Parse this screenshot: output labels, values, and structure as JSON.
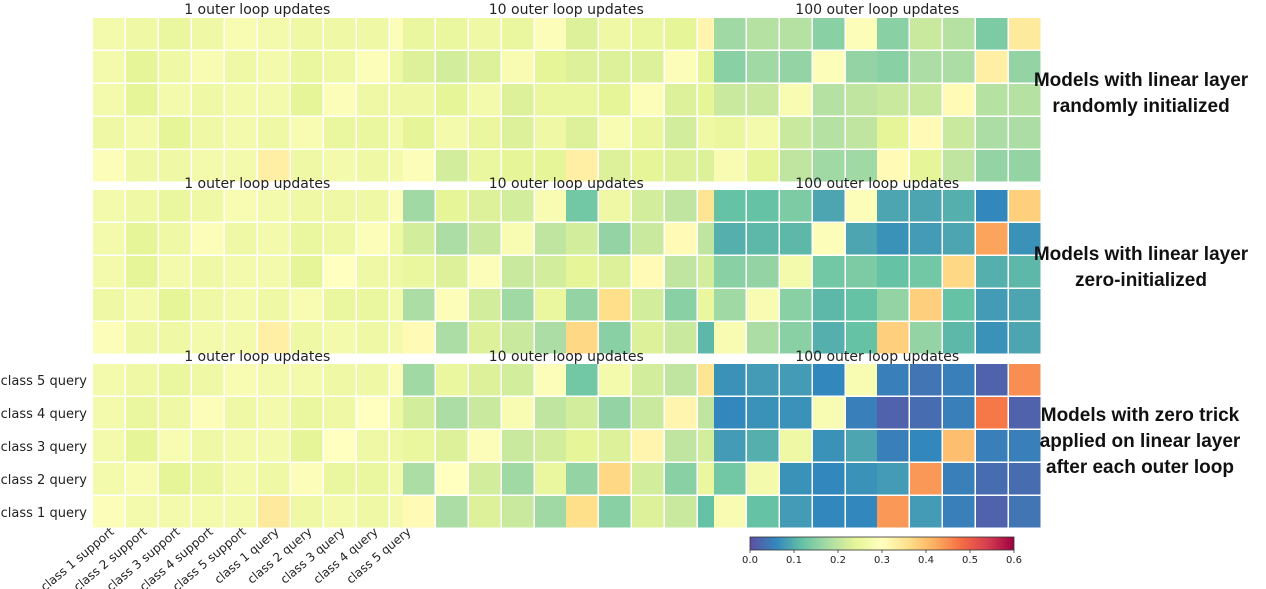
{
  "chart_data": {
    "type": "heatmap",
    "colormap": "Spectral_r",
    "colorbar": {
      "range": [
        0.0,
        0.6
      ],
      "ticks": [
        "0.0",
        "0.1",
        "0.2",
        "0.3",
        "0.4",
        "0.5",
        "0.6"
      ]
    },
    "row_labels": [
      "class 5 query",
      "class 4 query",
      "class 3 query",
      "class 2 query",
      "class 1 query"
    ],
    "support_col_labels": [
      "class 1 support",
      "class 2 support",
      "class 3 support",
      "class 4 support",
      "class 5 support"
    ],
    "query_col_labels": [
      "class 1 query",
      "class 2 query",
      "class 3 query",
      "class 4 query",
      "class 5 query"
    ],
    "rows": [
      {
        "label": "Models with linear layer randomly initialized",
        "panels": [
          {
            "title": "1 outer loop updates",
            "support": [
              [
                0.27,
                0.26,
                0.25,
                0.26,
                0.28
              ],
              [
                0.27,
                0.24,
                0.26,
                0.28,
                0.26
              ],
              [
                0.27,
                0.24,
                0.27,
                0.26,
                0.27
              ],
              [
                0.26,
                0.27,
                0.24,
                0.26,
                0.27
              ],
              [
                0.29,
                0.26,
                0.26,
                0.27,
                0.27
              ]
            ],
            "query": [
              [
                0.27,
                0.26,
                0.26,
                0.26,
                0.29
              ],
              [
                0.27,
                0.25,
                0.26,
                0.29,
                0.26
              ],
              [
                0.27,
                0.24,
                0.29,
                0.26,
                0.26
              ],
              [
                0.26,
                0.28,
                0.25,
                0.25,
                0.27
              ],
              [
                0.33,
                0.26,
                0.27,
                0.26,
                0.27
              ]
            ]
          },
          {
            "title": "10 outer loop updates",
            "support": [
              [
                0.25,
                0.25,
                0.26,
                0.25,
                0.29
              ],
              [
                0.23,
                0.22,
                0.23,
                0.28,
                0.24
              ],
              [
                0.26,
                0.24,
                0.27,
                0.23,
                0.25
              ],
              [
                0.24,
                0.27,
                0.25,
                0.23,
                0.26
              ],
              [
                0.29,
                0.22,
                0.25,
                0.24,
                0.24
              ]
            ],
            "query": [
              [
                0.23,
                0.26,
                0.25,
                0.24,
                0.32
              ],
              [
                0.23,
                0.23,
                0.23,
                0.29,
                0.24
              ],
              [
                0.25,
                0.24,
                0.29,
                0.23,
                0.24
              ],
              [
                0.23,
                0.28,
                0.25,
                0.22,
                0.26
              ],
              [
                0.33,
                0.23,
                0.24,
                0.23,
                0.23
              ]
            ]
          },
          {
            "title": "100 outer loop updates",
            "support": [
              [
                0.17,
                0.19,
                0.19,
                0.15,
                0.29
              ],
              [
                0.15,
                0.17,
                0.16,
                0.29,
                0.16
              ],
              [
                0.21,
                0.21,
                0.28,
                0.19,
                0.2
              ],
              [
                0.25,
                0.27,
                0.21,
                0.19,
                0.2
              ],
              [
                0.28,
                0.24,
                0.2,
                0.17,
                0.17
              ]
            ],
            "query": [
              [
                0.15,
                0.21,
                0.19,
                0.14,
                0.34
              ],
              [
                0.15,
                0.18,
                0.18,
                0.33,
                0.16
              ],
              [
                0.21,
                0.21,
                0.31,
                0.19,
                0.19
              ],
              [
                0.24,
                0.31,
                0.21,
                0.18,
                0.18
              ],
              [
                0.31,
                0.24,
                0.2,
                0.16,
                0.16
              ]
            ]
          }
        ]
      },
      {
        "label": "Models with linear layer zero-initialized",
        "panels": [
          {
            "title": "1 outer loop updates",
            "support": [
              [
                0.27,
                0.26,
                0.25,
                0.26,
                0.28
              ],
              [
                0.27,
                0.24,
                0.26,
                0.29,
                0.26
              ],
              [
                0.27,
                0.24,
                0.27,
                0.26,
                0.27
              ],
              [
                0.26,
                0.27,
                0.24,
                0.26,
                0.27
              ],
              [
                0.29,
                0.26,
                0.26,
                0.27,
                0.27
              ]
            ],
            "query": [
              [
                0.27,
                0.26,
                0.26,
                0.26,
                0.29
              ],
              [
                0.27,
                0.25,
                0.26,
                0.29,
                0.26
              ],
              [
                0.27,
                0.24,
                0.3,
                0.26,
                0.26
              ],
              [
                0.26,
                0.28,
                0.25,
                0.25,
                0.27
              ],
              [
                0.33,
                0.26,
                0.27,
                0.26,
                0.27
              ]
            ]
          },
          {
            "title": "10 outer loop updates",
            "support": [
              [
                0.17,
                0.24,
                0.23,
                0.22,
                0.28
              ],
              [
                0.22,
                0.18,
                0.21,
                0.28,
                0.2
              ],
              [
                0.25,
                0.23,
                0.29,
                0.21,
                0.22
              ],
              [
                0.18,
                0.29,
                0.22,
                0.17,
                0.25
              ],
              [
                0.31,
                0.18,
                0.23,
                0.21,
                0.18
              ]
            ],
            "query": [
              [
                0.13,
                0.26,
                0.22,
                0.2,
                0.35
              ],
              [
                0.22,
                0.16,
                0.21,
                0.31,
                0.2
              ],
              [
                0.24,
                0.23,
                0.31,
                0.2,
                0.22
              ],
              [
                0.16,
                0.36,
                0.22,
                0.15,
                0.25
              ],
              [
                0.37,
                0.15,
                0.23,
                0.21,
                0.11
              ]
            ]
          },
          {
            "title": "100 outer loop updates",
            "support": [
              [
                0.12,
                0.12,
                0.14,
                0.09,
                0.29
              ],
              [
                0.1,
                0.11,
                0.11,
                0.29,
                0.09
              ],
              [
                0.15,
                0.16,
                0.27,
                0.13,
                0.14
              ],
              [
                0.17,
                0.28,
                0.15,
                0.11,
                0.12
              ],
              [
                0.28,
                0.18,
                0.15,
                0.1,
                0.12
              ]
            ],
            "query": [
              [
                0.09,
                0.09,
                0.1,
                0.06,
                0.38
              ],
              [
                0.07,
                0.08,
                0.09,
                0.43,
                0.07
              ],
              [
                0.12,
                0.13,
                0.37,
                0.1,
                0.11
              ],
              [
                0.16,
                0.38,
                0.12,
                0.08,
                0.09
              ],
              [
                0.38,
                0.16,
                0.11,
                0.07,
                0.09
              ]
            ]
          }
        ]
      },
      {
        "label": "Models with zero trick applied on linear layer after each outer loop",
        "panels": [
          {
            "title": "1 outer loop updates",
            "support": [
              [
                0.27,
                0.26,
                0.25,
                0.26,
                0.28
              ],
              [
                0.27,
                0.25,
                0.26,
                0.29,
                0.26
              ],
              [
                0.27,
                0.24,
                0.28,
                0.26,
                0.27
              ],
              [
                0.27,
                0.28,
                0.24,
                0.25,
                0.27
              ],
              [
                0.29,
                0.27,
                0.27,
                0.27,
                0.27
              ]
            ],
            "query": [
              [
                0.27,
                0.27,
                0.26,
                0.26,
                0.29
              ],
              [
                0.27,
                0.25,
                0.26,
                0.3,
                0.26
              ],
              [
                0.27,
                0.24,
                0.3,
                0.26,
                0.26
              ],
              [
                0.26,
                0.29,
                0.25,
                0.25,
                0.27
              ],
              [
                0.34,
                0.26,
                0.27,
                0.26,
                0.27
              ]
            ]
          },
          {
            "title": "10 outer loop updates",
            "support": [
              [
                0.17,
                0.25,
                0.23,
                0.22,
                0.29
              ],
              [
                0.22,
                0.18,
                0.21,
                0.28,
                0.2
              ],
              [
                0.25,
                0.23,
                0.29,
                0.21,
                0.22
              ],
              [
                0.18,
                0.3,
                0.22,
                0.17,
                0.25
              ],
              [
                0.31,
                0.18,
                0.23,
                0.21,
                0.17
              ]
            ],
            "query": [
              [
                0.13,
                0.27,
                0.22,
                0.2,
                0.35
              ],
              [
                0.22,
                0.16,
                0.21,
                0.32,
                0.2
              ],
              [
                0.24,
                0.23,
                0.32,
                0.2,
                0.22
              ],
              [
                0.16,
                0.37,
                0.22,
                0.15,
                0.25
              ],
              [
                0.36,
                0.15,
                0.23,
                0.21,
                0.12
              ]
            ]
          },
          {
            "title": "100 outer loop updates",
            "support": [
              [
                0.07,
                0.08,
                0.08,
                0.06,
                0.28
              ],
              [
                0.06,
                0.07,
                0.07,
                0.28,
                0.05
              ],
              [
                0.08,
                0.1,
                0.26,
                0.07,
                0.09
              ],
              [
                0.13,
                0.27,
                0.07,
                0.06,
                0.07
              ],
              [
                0.28,
                0.12,
                0.08,
                0.06,
                0.06
              ]
            ],
            "query": [
              [
                0.05,
                0.04,
                0.05,
                0.02,
                0.45
              ],
              [
                0.02,
                0.03,
                0.05,
                0.47,
                0.02
              ],
              [
                0.05,
                0.06,
                0.4,
                0.05,
                0.05
              ],
              [
                0.08,
                0.44,
                0.05,
                0.03,
                0.03
              ],
              [
                0.44,
                0.08,
                0.05,
                0.02,
                0.04
              ]
            ]
          }
        ]
      }
    ]
  }
}
